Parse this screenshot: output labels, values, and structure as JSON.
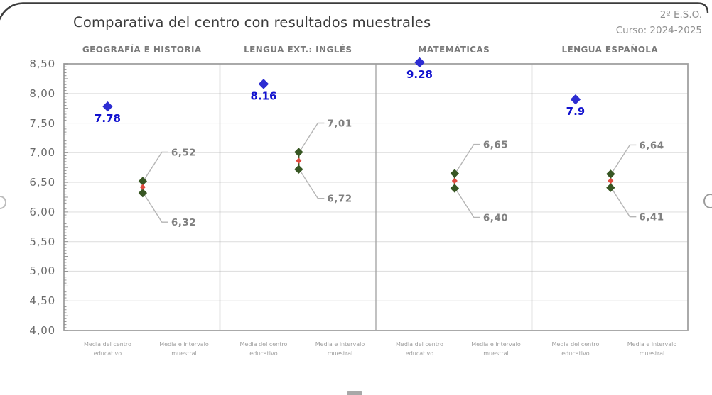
{
  "title": "Comparativa del centro con resultados muestrales",
  "meta": {
    "grade": "2º E.S.O.",
    "course": "Curso: 2024-2025"
  },
  "chart_data": {
    "type": "scatter",
    "title": "Comparativa del centro con resultados muestrales",
    "ylim": [
      4.0,
      8.5
    ],
    "ytick_step": 0.5,
    "ytick_labels": [
      "8,50",
      "8,00",
      "7,50",
      "7,00",
      "6,50",
      "6,00",
      "5,50",
      "5,00",
      "4,50",
      "4,00"
    ],
    "grid": true,
    "legend_position": "none",
    "categories": [
      [
        "Media del centro",
        "educativo"
      ],
      [
        "Media e intervalo",
        "muestral"
      ]
    ],
    "panels": [
      {
        "subject": "GEOGRAFÍA E HISTORIA",
        "center_mean": 7.78,
        "center_label": "7.78",
        "sample_upper": 6.52,
        "sample_upper_label": "6,52",
        "sample_lower": 6.32,
        "sample_lower_label": "6,32"
      },
      {
        "subject": "LENGUA EXT.: INGLÉS",
        "center_mean": 8.16,
        "center_label": "8.16",
        "sample_upper": 7.01,
        "sample_upper_label": "7,01",
        "sample_lower": 6.72,
        "sample_lower_label": "6,72"
      },
      {
        "subject": "MATEMÁTICAS",
        "center_mean": 9.28,
        "center_label": "9.28",
        "sample_upper": 6.65,
        "sample_upper_label": "6,65",
        "sample_lower": 6.4,
        "sample_lower_label": "6,40"
      },
      {
        "subject": "LENGUA ESPAÑOLA",
        "center_mean": 7.9,
        "center_label": "7.9",
        "sample_upper": 6.64,
        "sample_upper_label": "6,64",
        "sample_lower": 6.41,
        "sample_lower_label": "6,41"
      }
    ],
    "colors": {
      "center_marker": "#2d2dd2",
      "center_label": "#1212cf",
      "interval_marker": "#375623",
      "interval_mid": "#e04a3f",
      "leader_line": "#b5b5b5",
      "interval_label": "#808080",
      "gridline": "#e0e0e0",
      "frame": "#a0a0a0",
      "card_border": "#3c3c3c"
    }
  }
}
